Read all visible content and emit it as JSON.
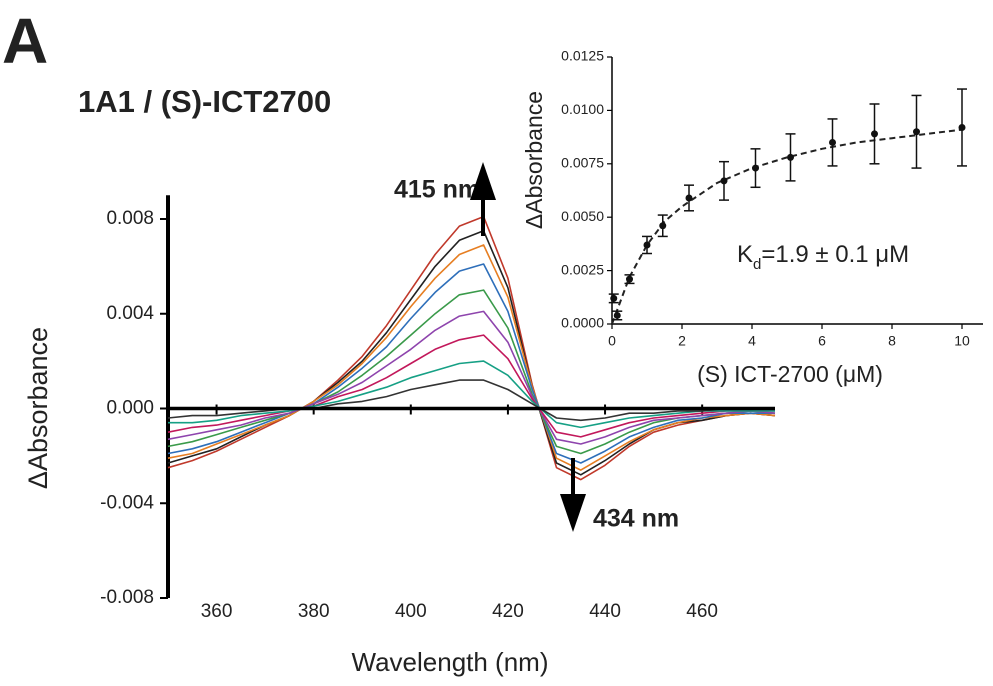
{
  "panel_label": "A",
  "chart_data": [
    {
      "type": "line",
      "title": "1A1 / (S)-ICT2700",
      "xlabel": "Wavelength (nm)",
      "ylabel": "ΔAbsorbance",
      "x": [
        350,
        355,
        360,
        365,
        370,
        375,
        380,
        385,
        390,
        395,
        400,
        405,
        410,
        415,
        420,
        425,
        430,
        435,
        440,
        445,
        450,
        455,
        460,
        465,
        470,
        475
      ],
      "xlim": [
        350,
        475
      ],
      "xticks": [
        360,
        380,
        400,
        420,
        440,
        460
      ],
      "ylim": [
        -0.008,
        0.009
      ],
      "yticks": [
        {
          "value": -0.008,
          "label": "-0.008"
        },
        {
          "value": -0.004,
          "label": "-0.004"
        },
        {
          "value": 0,
          "label": "0.000"
        },
        {
          "value": 0.004,
          "label": "0.004"
        },
        {
          "value": 0.008,
          "label": "0.008"
        }
      ],
      "annotations": [
        "415 nm",
        "434 nm"
      ],
      "series": [
        {
          "color": "#c0392b",
          "values": [
            -0.0025,
            -0.0022,
            -0.0018,
            -0.0013,
            -0.0008,
            -0.0003,
            0.0003,
            0.0012,
            0.0022,
            0.0035,
            0.005,
            0.0065,
            0.0077,
            0.0081,
            0.0055,
            0.001,
            -0.0025,
            -0.003,
            -0.0024,
            -0.0016,
            -0.001,
            -0.0007,
            -0.0005,
            -0.0003,
            -0.0002,
            -0.0003
          ]
        },
        {
          "color": "#222222",
          "values": [
            -0.0023,
            -0.002,
            -0.0017,
            -0.0012,
            -0.0007,
            -0.0003,
            0.0003,
            0.0011,
            0.002,
            0.0032,
            0.0046,
            0.006,
            0.0071,
            0.0075,
            0.0051,
            0.0009,
            -0.0023,
            -0.0028,
            -0.0022,
            -0.0015,
            -0.0009,
            -0.0006,
            -0.0005,
            -0.0003,
            -0.0002,
            -0.0003
          ]
        },
        {
          "color": "#e67e22",
          "values": [
            -0.0021,
            -0.0019,
            -0.0015,
            -0.0011,
            -0.0007,
            -0.0003,
            0.0003,
            0.001,
            0.0019,
            0.003,
            0.0043,
            0.0055,
            0.0065,
            0.0069,
            0.0047,
            0.0009,
            -0.0021,
            -0.0026,
            -0.002,
            -0.0014,
            -0.0009,
            -0.0006,
            -0.0004,
            -0.0003,
            -0.0002,
            -0.0003
          ]
        },
        {
          "color": "#2e6fba",
          "values": [
            -0.0019,
            -0.0017,
            -0.0014,
            -0.001,
            -0.0006,
            -0.0002,
            0.0002,
            0.0009,
            0.0017,
            0.0026,
            0.0038,
            0.0049,
            0.0058,
            0.0061,
            0.0041,
            0.0008,
            -0.0019,
            -0.0023,
            -0.0018,
            -0.0012,
            -0.0008,
            -0.0005,
            -0.0004,
            -0.0002,
            -0.0002,
            -0.0002
          ]
        },
        {
          "color": "#3a9a4a",
          "values": [
            -0.0016,
            -0.0014,
            -0.0011,
            -0.0008,
            -0.0005,
            -0.0002,
            0.0002,
            0.0007,
            0.0014,
            0.0022,
            0.0031,
            0.004,
            0.0048,
            0.005,
            0.0034,
            0.0006,
            -0.0016,
            -0.0019,
            -0.0015,
            -0.001,
            -0.0006,
            -0.0004,
            -0.0003,
            -0.0002,
            -0.0001,
            -0.0002
          ]
        },
        {
          "color": "#8e44ad",
          "values": [
            -0.0013,
            -0.0011,
            -0.0009,
            -0.0007,
            -0.0004,
            -0.0002,
            0.0002,
            0.0006,
            0.0011,
            0.0018,
            0.0025,
            0.0033,
            0.0039,
            0.0041,
            0.0028,
            0.0005,
            -0.0013,
            -0.0015,
            -0.0012,
            -0.0008,
            -0.0005,
            -0.0004,
            -0.0003,
            -0.0002,
            -0.0001,
            -0.0002
          ]
        },
        {
          "color": "#c2185b",
          "values": [
            -0.001,
            -0.0008,
            -0.0007,
            -0.0005,
            -0.0003,
            -0.0001,
            0.0001,
            0.0005,
            0.0008,
            0.0013,
            0.0019,
            0.0025,
            0.0029,
            0.0031,
            0.0021,
            0.0004,
            -0.001,
            -0.0012,
            -0.0009,
            -0.0006,
            -0.0004,
            -0.0003,
            -0.0002,
            -0.0001,
            -0.0001,
            -0.0001
          ]
        },
        {
          "color": "#16a085",
          "values": [
            -0.0006,
            -0.0006,
            -0.0005,
            -0.0003,
            -0.0002,
            -0.0001,
            0.0001,
            0.0003,
            0.0006,
            0.0009,
            0.0013,
            0.0016,
            0.0019,
            0.002,
            0.0014,
            0.0003,
            -0.0006,
            -0.0008,
            -0.0006,
            -0.0004,
            -0.0003,
            -0.0002,
            -0.0001,
            -0.0001,
            -0.0001,
            -0.0001
          ]
        },
        {
          "color": "#333333",
          "values": [
            -0.0004,
            -0.0003,
            -0.0003,
            -0.0002,
            -0.0001,
            0,
            0,
            0.0002,
            0.0003,
            0.0005,
            0.0008,
            0.001,
            0.0012,
            0.0012,
            0.0008,
            0.0002,
            -0.0004,
            -0.0005,
            -0.0004,
            -0.0002,
            -0.0002,
            -0.0001,
            -0.0001,
            0,
            0,
            0
          ]
        }
      ]
    },
    {
      "type": "scatter",
      "xlabel": "(S) ICT-2700 (μM)",
      "ylabel": "ΔAbsorbance",
      "annotation_parts": [
        "K",
        "d",
        "=1.9 ± 0.1 μM"
      ],
      "x": [
        0.05,
        0.15,
        0.5,
        1.0,
        1.45,
        2.2,
        3.2,
        4.1,
        5.1,
        6.3,
        7.5,
        8.7,
        10.0
      ],
      "values": [
        0.0012,
        0.0004,
        0.0021,
        0.0037,
        0.0046,
        0.0059,
        0.0067,
        0.0073,
        0.0078,
        0.0085,
        0.0089,
        0.009,
        0.0092
      ],
      "errors": [
        0.0002,
        0.0002,
        0.0002,
        0.0004,
        0.0005,
        0.0006,
        0.0009,
        0.0009,
        0.0011,
        0.0011,
        0.0014,
        0.0017,
        0.0018
      ],
      "fit": {
        "x": [
          0,
          0.5,
          1,
          1.5,
          2,
          3,
          4,
          5,
          6,
          7,
          8,
          9,
          10
        ],
        "values": [
          0,
          0.0022,
          0.0037,
          0.0048,
          0.0055,
          0.0066,
          0.0073,
          0.0078,
          0.0082,
          0.0085,
          0.0087,
          0.0089,
          0.0091
        ]
      },
      "color": "#111111",
      "xlim": [
        0,
        10.6
      ],
      "xticks": [
        0,
        2,
        4,
        6,
        8,
        10
      ],
      "ylim": [
        0,
        0.0125
      ],
      "yticks": [
        {
          "value": 0,
          "label": "0.0000"
        },
        {
          "value": 0.0025,
          "label": "0.0025"
        },
        {
          "value": 0.005,
          "label": "0.0050"
        },
        {
          "value": 0.0075,
          "label": "0.0075"
        },
        {
          "value": 0.01,
          "label": "0.0100"
        },
        {
          "value": 0.0125,
          "label": "0.0125"
        }
      ]
    }
  ]
}
